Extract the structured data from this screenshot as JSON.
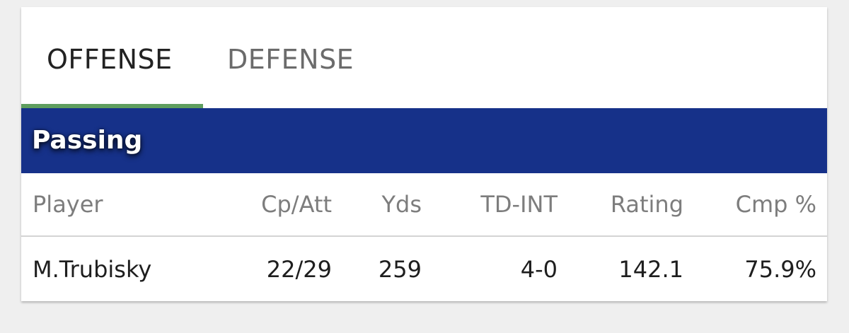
{
  "tabs": [
    {
      "label": "OFFENSE",
      "active": true
    },
    {
      "label": "DEFENSE",
      "active": false
    }
  ],
  "colors": {
    "active_tab_underline": "#5e9e5e",
    "section_header_bg": "#163189"
  },
  "section": {
    "title": "Passing"
  },
  "table": {
    "columns": [
      "Player",
      "Cp/Att",
      "Yds",
      "TD-INT",
      "Rating",
      "Cmp %"
    ],
    "rows": [
      [
        "M.Trubisky",
        "22/29",
        "259",
        "4-0",
        "142.1",
        "75.9%"
      ]
    ]
  }
}
